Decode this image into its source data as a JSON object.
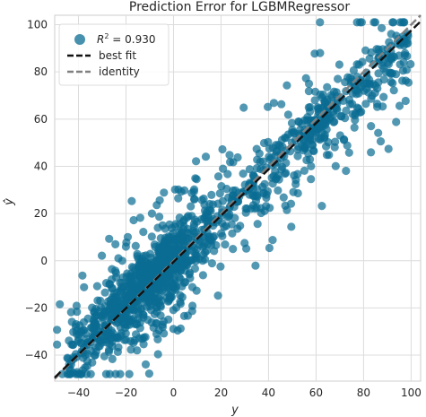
{
  "chart_data": {
    "type": "scatter",
    "title": "Prediction Error for LGBMRegressor",
    "xlabel": "y",
    "ylabel": "ŷ",
    "xlim": [
      -50,
      104
    ],
    "ylim": [
      -51,
      104
    ],
    "xticks": [
      -40,
      -20,
      0,
      20,
      40,
      60,
      80,
      100
    ],
    "yticks": [
      -40,
      -20,
      0,
      20,
      40,
      60,
      80,
      100
    ],
    "grid": true,
    "legend_position": "top-left",
    "series": [
      {
        "name": "R² = 0.930",
        "name_prefix": "R",
        "name_sup": "2",
        "name_value": " = 0.930",
        "kind": "points",
        "color": "#0a6c93",
        "opacity": 0.7,
        "approx_count": 1400,
        "approx_trend": "y ≈ 0.93·x + 0.5, residual std ≈ 8, range x -50 to 100"
      },
      {
        "name": "best fit",
        "kind": "line",
        "style": "dashed",
        "color": "#111111",
        "slope": 0.98,
        "intercept": -0.5
      },
      {
        "name": "identity",
        "kind": "line",
        "style": "dashed",
        "color": "#808080",
        "slope": 1.0,
        "intercept": 0
      }
    ]
  }
}
